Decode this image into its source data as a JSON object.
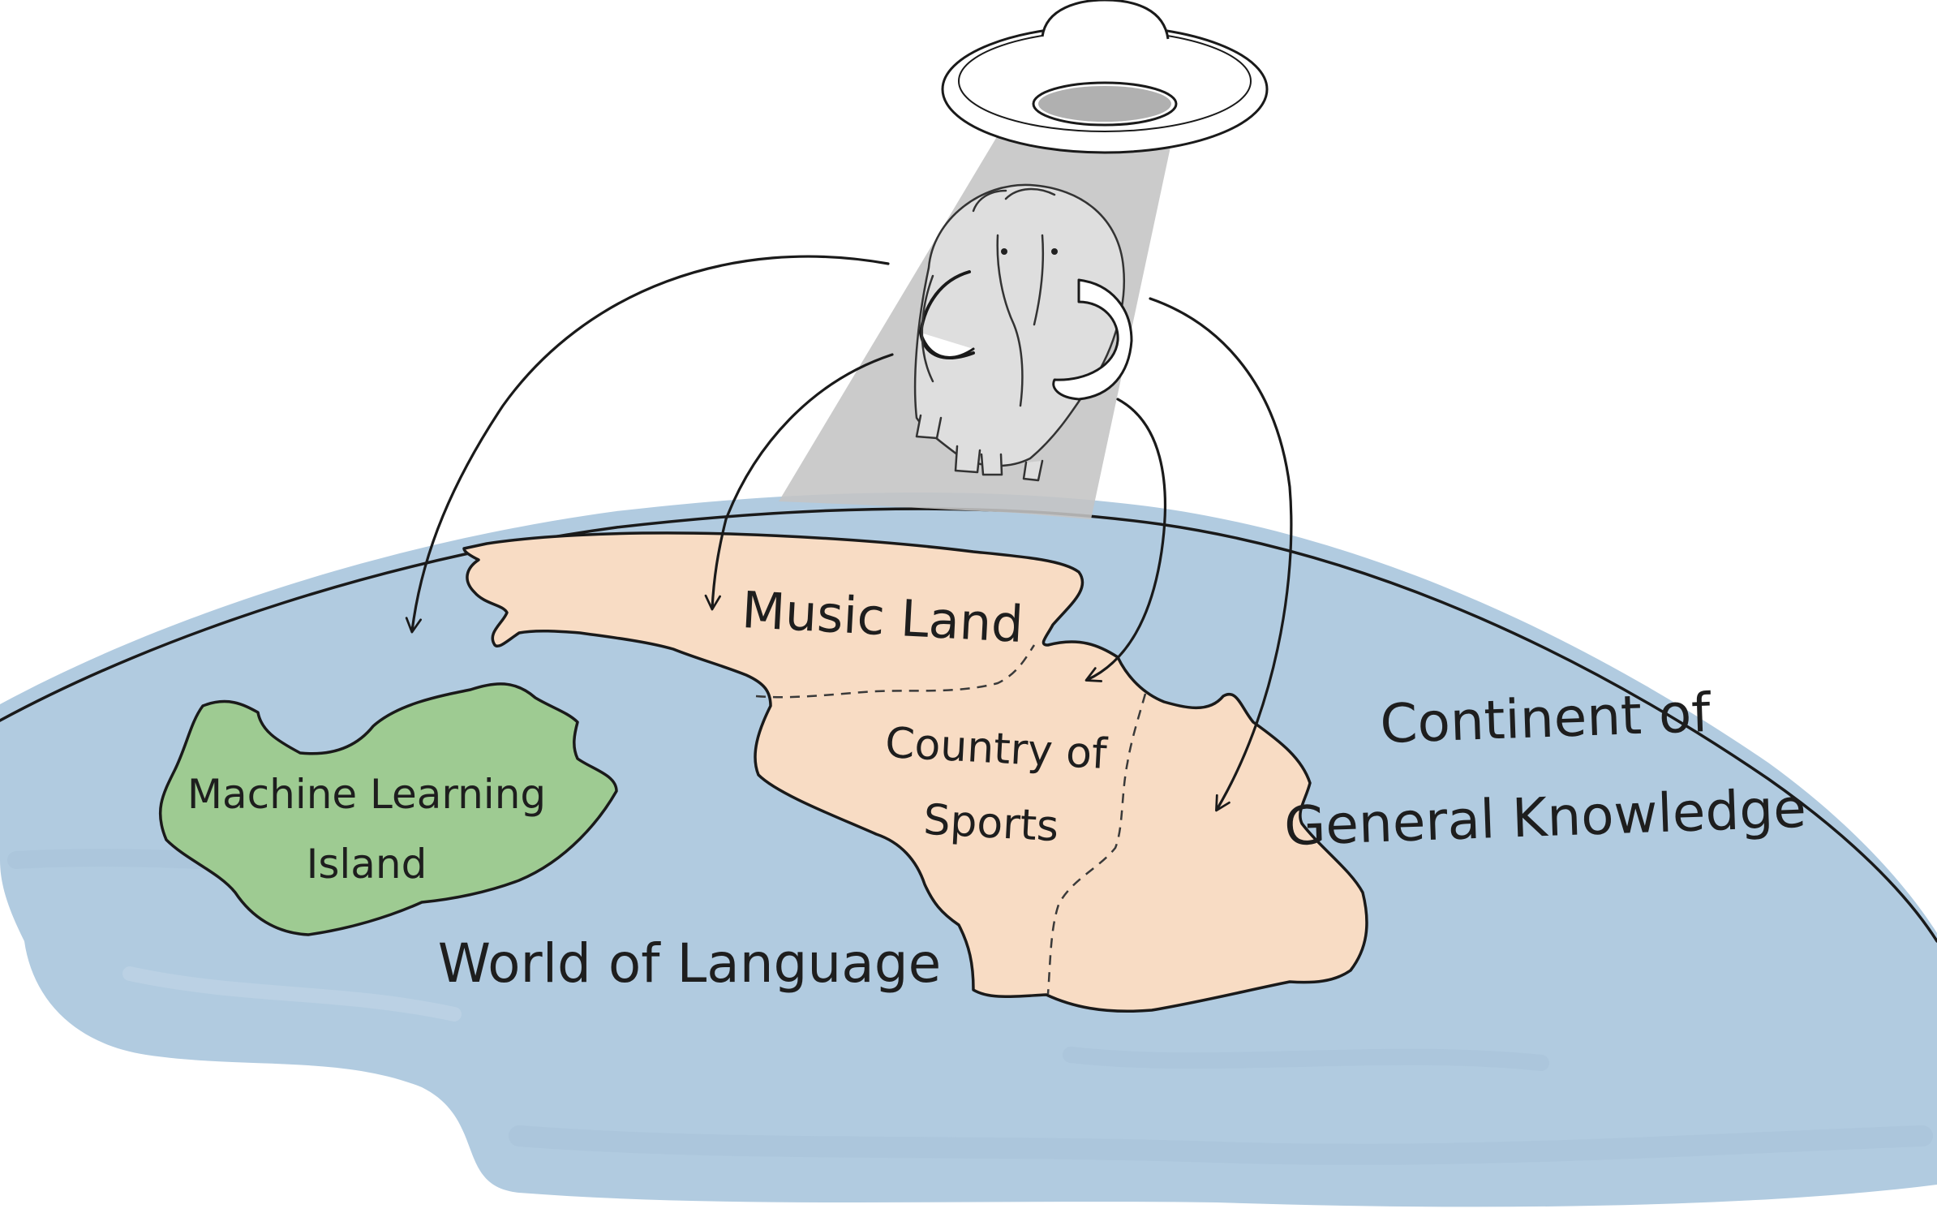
{
  "labels": {
    "machine_learning_island": [
      "Machine Learning",
      "Island"
    ],
    "music_land": "Music Land",
    "country_of_sports": [
      "Country of",
      "Sports"
    ],
    "world_of_language": "World of Language",
    "continent_of_general_knowledge": [
      "Continent of",
      "General Knowledge"
    ]
  },
  "colors": {
    "ocean": "#b1cbe0",
    "island": "#9ecb92",
    "continent": "#f8dcc4",
    "beam": "#c4c4c4",
    "ink": "#1e1e1e"
  },
  "icons": [
    "ufo-icon",
    "mammoth-icon",
    "arrow-icon"
  ]
}
